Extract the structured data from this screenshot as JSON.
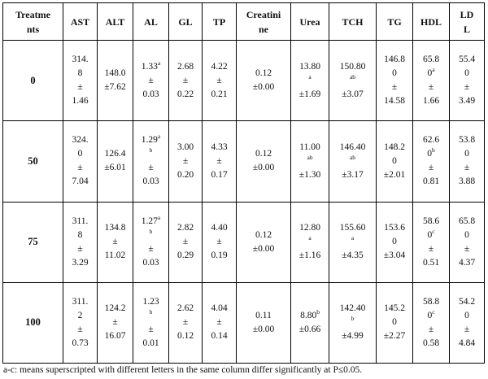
{
  "table": {
    "headers": [
      [
        "Treatme",
        "nts"
      ],
      [
        "AST"
      ],
      [
        "ALT"
      ],
      [
        "AL"
      ],
      [
        "GL"
      ],
      [
        "TP"
      ],
      [
        "Creatini",
        "ne"
      ],
      [
        "Urea"
      ],
      [
        "TCH"
      ],
      [
        "TG"
      ],
      [
        "HDL"
      ],
      [
        "LD",
        "L"
      ]
    ],
    "rows": [
      {
        "treatment": "0",
        "cells": [
          [
            [
              "314."
            ],
            [
              "8"
            ],
            [
              "±"
            ],
            [
              "1.46"
            ]
          ],
          [
            [
              "148.0"
            ],
            [
              "±7.62"
            ]
          ],
          [
            [
              "1.33",
              "a"
            ],
            [
              "±"
            ],
            [
              "0.03"
            ]
          ],
          [
            [
              "2.68"
            ],
            [
              "±"
            ],
            [
              "0.22"
            ]
          ],
          [
            [
              "4.22"
            ],
            [
              "±"
            ],
            [
              "0.21"
            ]
          ],
          [
            [
              "0.12"
            ],
            [
              "±0.00"
            ]
          ],
          [
            [
              "13.80"
            ],
            [
              "",
              "a"
            ],
            [
              "±1.69"
            ]
          ],
          [
            [
              "150.80"
            ],
            [
              "",
              "ab"
            ],
            [
              "±3.07"
            ]
          ],
          [
            [
              "146.8"
            ],
            [
              "0"
            ],
            [
              "±"
            ],
            [
              "14.58"
            ]
          ],
          [
            [
              "65.8"
            ],
            [
              "0",
              "a"
            ],
            [
              "±"
            ],
            [
              "1.66"
            ]
          ],
          [
            [
              "55.4"
            ],
            [
              "0"
            ],
            [
              "±"
            ],
            [
              "3.49"
            ]
          ]
        ]
      },
      {
        "treatment": "50",
        "cells": [
          [
            [
              "324."
            ],
            [
              "0"
            ],
            [
              "±"
            ],
            [
              "7.04"
            ]
          ],
          [
            [
              "126.4"
            ],
            [
              "±6.01"
            ]
          ],
          [
            [
              "1.29",
              "a"
            ],
            [
              "",
              "b"
            ],
            [
              "±"
            ],
            [
              "0.03"
            ]
          ],
          [
            [
              "3.00"
            ],
            [
              "±"
            ],
            [
              "0.20"
            ]
          ],
          [
            [
              "4.33"
            ],
            [
              "±"
            ],
            [
              "0.17"
            ]
          ],
          [
            [
              "0.12"
            ],
            [
              "±0.00"
            ]
          ],
          [
            [
              "11.00"
            ],
            [
              "",
              "ab"
            ],
            [
              "±1.30"
            ]
          ],
          [
            [
              "146.40"
            ],
            [
              "",
              "ab"
            ],
            [
              "±3.17"
            ]
          ],
          [
            [
              "148.2"
            ],
            [
              "0"
            ],
            [
              "±2.01"
            ]
          ],
          [
            [
              "62.6"
            ],
            [
              "0",
              "b"
            ],
            [
              "±"
            ],
            [
              "0.81"
            ]
          ],
          [
            [
              "53.8"
            ],
            [
              "0"
            ],
            [
              "±"
            ],
            [
              "3.88"
            ]
          ]
        ]
      },
      {
        "treatment": "75",
        "cells": [
          [
            [
              "311."
            ],
            [
              "8"
            ],
            [
              "±"
            ],
            [
              "3.29"
            ]
          ],
          [
            [
              "134.8"
            ],
            [
              "±"
            ],
            [
              "11.02"
            ]
          ],
          [
            [
              "1.27",
              "a"
            ],
            [
              "",
              "b"
            ],
            [
              "±"
            ],
            [
              "0.03"
            ]
          ],
          [
            [
              "2.82"
            ],
            [
              "±"
            ],
            [
              "0.29"
            ]
          ],
          [
            [
              "4.40"
            ],
            [
              "±"
            ],
            [
              "0.19"
            ]
          ],
          [
            [
              "0.12"
            ],
            [
              "±0.00"
            ]
          ],
          [
            [
              "12.80"
            ],
            [
              "",
              "a"
            ],
            [
              "±1.16"
            ]
          ],
          [
            [
              "155.60"
            ],
            [
              "",
              "a"
            ],
            [
              "±4.35"
            ]
          ],
          [
            [
              "153.6"
            ],
            [
              "0"
            ],
            [
              "±3.04"
            ]
          ],
          [
            [
              "58.6"
            ],
            [
              "0",
              "c"
            ],
            [
              "±"
            ],
            [
              "0.51"
            ]
          ],
          [
            [
              "65.8"
            ],
            [
              "0"
            ],
            [
              "±"
            ],
            [
              "4.37"
            ]
          ]
        ]
      },
      {
        "treatment": "100",
        "cells": [
          [
            [
              "311."
            ],
            [
              "2"
            ],
            [
              "±"
            ],
            [
              "0.73"
            ]
          ],
          [
            [
              "124.2"
            ],
            [
              "±"
            ],
            [
              "16.07"
            ]
          ],
          [
            [
              "1.23"
            ],
            [
              "",
              "b"
            ],
            [
              "±"
            ],
            [
              "0.01"
            ]
          ],
          [
            [
              "2.62"
            ],
            [
              "±"
            ],
            [
              "0.12"
            ]
          ],
          [
            [
              "4.04"
            ],
            [
              "±"
            ],
            [
              "0.14"
            ]
          ],
          [
            [
              "0.11"
            ],
            [
              "±0.00"
            ]
          ],
          [
            [
              "8.80",
              "b"
            ],
            [
              "±0.66"
            ]
          ],
          [
            [
              "142.40"
            ],
            [
              "",
              "b"
            ],
            [
              "±4.99"
            ]
          ],
          [
            [
              "145.2"
            ],
            [
              "0"
            ],
            [
              "±2.27"
            ]
          ],
          [
            [
              "58.8"
            ],
            [
              "0",
              "c"
            ],
            [
              "±"
            ],
            [
              "0.58"
            ]
          ],
          [
            [
              "54.2"
            ],
            [
              "0"
            ],
            [
              "±"
            ],
            [
              "4.84"
            ]
          ]
        ]
      }
    ]
  },
  "footnote": "a-c: means superscripted with different letters in the same column differ significantly  at P≤0.05."
}
